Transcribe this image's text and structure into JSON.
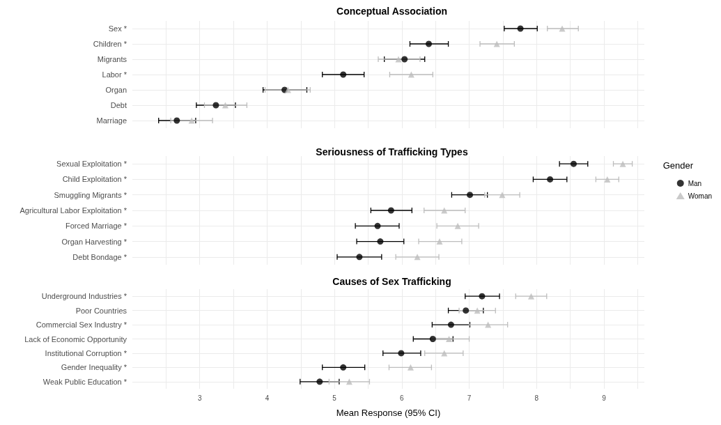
{
  "chart_data": [
    {
      "type": "scatter",
      "orientation": "horizontal",
      "title": "Conceptual Association",
      "categories": [
        "Sex *",
        "Children *",
        "Migrants",
        "Labor *",
        "Organ",
        "Debt",
        "Marriage"
      ],
      "series": [
        {
          "color": "#000000",
          "marker": "circle",
          "values": [
            7.76,
            6.4,
            6.04,
            5.13,
            4.26,
            3.24,
            2.66
          ],
          "errors": [
            [
              7.52,
              8.01
            ],
            [
              6.12,
              6.69
            ],
            [
              5.74,
              6.34
            ],
            [
              4.82,
              5.44
            ],
            [
              3.94,
              4.59
            ],
            [
              2.95,
              3.53
            ],
            [
              2.39,
              2.94
            ]
          ]
        },
        {
          "color": "#bdbdbd",
          "marker": "triangle",
          "values": [
            8.38,
            7.41,
            5.95,
            6.14,
            4.31,
            3.38,
            2.88
          ],
          "errors": [
            [
              8.16,
              8.62
            ],
            [
              7.16,
              7.67
            ],
            [
              5.65,
              6.27
            ],
            [
              5.82,
              6.46
            ],
            [
              3.97,
              4.64
            ],
            [
              3.07,
              3.7
            ],
            [
              2.57,
              3.19
            ]
          ]
        }
      ],
      "xlim": [
        2,
        9.6
      ],
      "xticks": [
        {
          "value": 2.5,
          "label": null
        },
        3,
        {
          "value": 3.5,
          "label": null
        },
        4,
        {
          "value": 4.5,
          "label": null
        },
        5,
        {
          "value": 5.5,
          "label": null
        },
        6,
        {
          "value": 6.5,
          "label": null
        },
        7,
        {
          "value": 7.5,
          "label": null
        },
        8,
        {
          "value": 8.5,
          "label": null
        },
        9,
        {
          "value": 9.5,
          "label": null
        }
      ],
      "tick_labels": "y",
      "grid": true,
      "legend": false
    },
    {
      "type": "scatter",
      "orientation": "horizontal",
      "title": "Seriousness of Trafficking Types",
      "categories": [
        "Sexual Exploitation *",
        "Child Exploitation *",
        "Smuggling Migrants *",
        "Agricultural Labor Exploitation *",
        "Forced Marriage *",
        "Organ Harvesting *",
        "Debt Bondage *"
      ],
      "series": [
        {
          "name": "Man",
          "color": "#000000",
          "marker": "circle",
          "values": [
            8.55,
            8.2,
            7.01,
            5.84,
            5.64,
            5.68,
            5.37
          ],
          "errors": [
            [
              8.34,
              8.76
            ],
            [
              7.95,
              8.45
            ],
            [
              6.74,
              7.27
            ],
            [
              5.54,
              6.15
            ],
            [
              5.31,
              5.96
            ],
            [
              5.33,
              6.03
            ],
            [
              5.04,
              5.7
            ]
          ]
        },
        {
          "name": "Woman",
          "color": "#bdbdbd",
          "marker": "triangle",
          "values": [
            9.28,
            9.05,
            7.49,
            6.63,
            6.83,
            6.56,
            6.23
          ],
          "errors": [
            [
              9.14,
              9.42
            ],
            [
              8.88,
              9.22
            ],
            [
              7.23,
              7.75
            ],
            [
              6.33,
              6.94
            ],
            [
              6.52,
              7.14
            ],
            [
              6.25,
              6.89
            ],
            [
              5.91,
              6.55
            ]
          ]
        }
      ],
      "xlim": [
        2,
        9.6
      ],
      "xticks": [
        {
          "value": 2.5,
          "label": null
        },
        3,
        {
          "value": 3.5,
          "label": null
        },
        4,
        {
          "value": 4.5,
          "label": null
        },
        5,
        {
          "value": 5.5,
          "label": null
        },
        6,
        {
          "value": 6.5,
          "label": null
        },
        7,
        {
          "value": 7.5,
          "label": null
        },
        8,
        {
          "value": 8.5,
          "label": null
        },
        9,
        {
          "value": 9.5,
          "label": null
        }
      ],
      "tick_labels": "y",
      "grid": true,
      "legend": "right",
      "legend_title": "Gender"
    },
    {
      "type": "scatter",
      "orientation": "horizontal",
      "title": "Causes of Sex Trafficking",
      "xlabel": "Mean Response (95% CI)",
      "categories": [
        "Underground Industries *",
        "Poor Countries",
        "Commercial Sex Industry *",
        "Lack of Economic Opportunity",
        "Institutional Corruption *",
        "Gender Inequality *",
        "Weak Public Education *"
      ],
      "series": [
        {
          "color": "#000000",
          "marker": "circle",
          "values": [
            7.19,
            6.95,
            6.73,
            6.46,
            5.99,
            5.13,
            4.78
          ],
          "errors": [
            [
              6.94,
              7.45
            ],
            [
              6.69,
              7.21
            ],
            [
              6.45,
              7.01
            ],
            [
              6.17,
              6.76
            ],
            [
              5.72,
              6.28
            ],
            [
              4.82,
              5.45
            ],
            [
              4.49,
              5.07
            ]
          ]
        },
        {
          "color": "#bdbdbd",
          "marker": "triangle",
          "values": [
            7.92,
            7.12,
            7.28,
            6.7,
            6.63,
            6.13,
            5.22
          ],
          "errors": [
            [
              7.69,
              8.15
            ],
            [
              6.85,
              7.39
            ],
            [
              7.0,
              7.57
            ],
            [
              6.44,
              7.0
            ],
            [
              6.34,
              6.91
            ],
            [
              5.81,
              6.44
            ],
            [
              4.92,
              5.52
            ]
          ]
        }
      ],
      "xlim": [
        2,
        9.6
      ],
      "xticks": [
        {
          "value": 2.5,
          "label": null
        },
        3,
        {
          "value": 3.5,
          "label": null
        },
        4,
        {
          "value": 4.5,
          "label": null
        },
        5,
        {
          "value": 5.5,
          "label": null
        },
        6,
        {
          "value": 6.5,
          "label": null
        },
        7,
        {
          "value": 7.5,
          "label": null
        },
        8,
        {
          "value": 8.5,
          "label": null
        },
        9,
        {
          "value": 9.5,
          "label": null
        }
      ],
      "grid": true,
      "legend": false
    }
  ]
}
